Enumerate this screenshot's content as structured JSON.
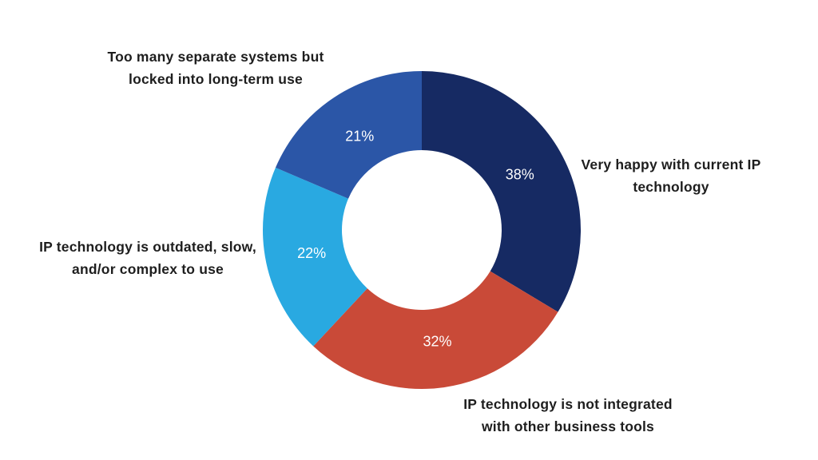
{
  "chart_data": {
    "type": "pie",
    "subtype": "donut",
    "title": "",
    "unit": "%",
    "direction": "clockwise",
    "start_angle_deg": 0,
    "legend_position": "labels-around-chart",
    "background_color": "#ffffff",
    "label_text_color": "#1e1e1e",
    "percent_label_color": "#ffffff",
    "slices": [
      {
        "id": "very-happy",
        "label": "Very happy with current IP technology",
        "label_lines": [
          "Very happy with current IP",
          "technology"
        ],
        "value": 38,
        "pct_label": "38%",
        "color": "#162A63"
      },
      {
        "id": "not-integrated",
        "label": "IP technology is not integrated with other business tools",
        "label_lines": [
          "IP technology is not integrated",
          "with other business tools"
        ],
        "value": 32,
        "pct_label": "32%",
        "color": "#C94A38"
      },
      {
        "id": "outdated",
        "label": "IP technology is outdated, slow, and/or complex to use",
        "label_lines": [
          "IP technology is outdated, slow,",
          "and/or complex to use"
        ],
        "value": 22,
        "pct_label": "22%",
        "color": "#29A9E1"
      },
      {
        "id": "separate-systems",
        "label": "Too many separate systems but locked into long-term use",
        "label_lines": [
          "Too many separate systems but",
          "locked into long-term use"
        ],
        "value": 21,
        "pct_label": "21%",
        "color": "#2B56A7"
      }
    ]
  }
}
